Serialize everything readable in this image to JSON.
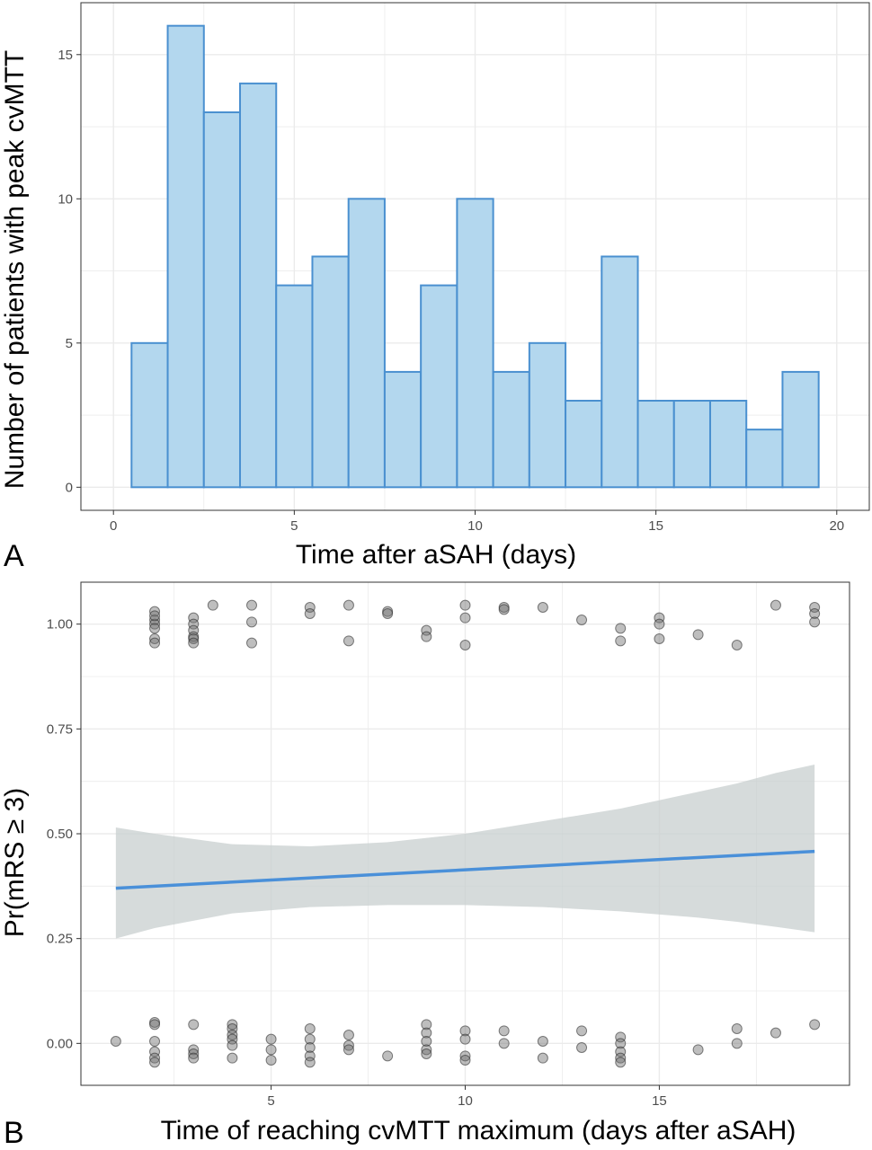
{
  "chart_data": [
    {
      "type": "bar",
      "panel_label": "A",
      "xlabel": "Time after aSAH (days)",
      "ylabel": "Number of patients with peak cvMTT",
      "x_ticks": [
        0,
        5,
        10,
        15,
        20
      ],
      "y_ticks": [
        0,
        5,
        10,
        15
      ],
      "xlim": [
        -0.9,
        20.9
      ],
      "ylim": [
        -0.8,
        16.8
      ],
      "bin_width": 1,
      "categories": [
        1,
        2,
        3,
        4,
        5,
        6,
        7,
        8,
        9,
        10,
        11,
        12,
        13,
        14,
        15,
        16,
        17,
        18,
        19
      ],
      "values": [
        5,
        16,
        13,
        14,
        7,
        8,
        10,
        4,
        7,
        10,
        4,
        5,
        3,
        8,
        3,
        3,
        3,
        2,
        4
      ],
      "grid": true,
      "colors": {
        "fill": "#b3d7ee",
        "edge": "#4a90d0",
        "grid": "#ebebeb"
      }
    },
    {
      "type": "scatter",
      "panel_label": "B",
      "xlabel": "Time of reaching cvMTT maximum (days after aSAH)",
      "ylabel": "Pr(mRS ≥ 3)",
      "x_ticks": [
        5,
        10,
        15
      ],
      "y_ticks": [
        "0.00",
        "0.25",
        "0.50",
        "0.75",
        "1.00"
      ],
      "xlim": [
        0.1,
        19.9
      ],
      "ylim": [
        -0.1,
        1.1
      ],
      "grid": true,
      "points_y1": [
        [
          2,
          1.03
        ],
        [
          2,
          1.01
        ],
        [
          2,
          1.0
        ],
        [
          2,
          0.99
        ],
        [
          2,
          0.965
        ],
        [
          2,
          0.955
        ],
        [
          2,
          1.02
        ],
        [
          3,
          1.015
        ],
        [
          3,
          1.0
        ],
        [
          3,
          0.985
        ],
        [
          3,
          0.97
        ],
        [
          3,
          0.965
        ],
        [
          3,
          0.955
        ],
        [
          3.5,
          1.045
        ],
        [
          4.5,
          1.045
        ],
        [
          4.5,
          1.005
        ],
        [
          4.5,
          0.955
        ],
        [
          6,
          1.04
        ],
        [
          6,
          1.025
        ],
        [
          7,
          1.045
        ],
        [
          7,
          0.96
        ],
        [
          8,
          1.03
        ],
        [
          8,
          1.025
        ],
        [
          9,
          0.985
        ],
        [
          9,
          0.97
        ],
        [
          10,
          1.045
        ],
        [
          10,
          1.015
        ],
        [
          10,
          0.95
        ],
        [
          11,
          1.04
        ],
        [
          11,
          1.035
        ],
        [
          12,
          1.04
        ],
        [
          13,
          1.01
        ],
        [
          14,
          0.99
        ],
        [
          14,
          0.96
        ],
        [
          15,
          1.015
        ],
        [
          15,
          1.0
        ],
        [
          15,
          0.965
        ],
        [
          16,
          0.975
        ],
        [
          17,
          0.95
        ],
        [
          18,
          1.045
        ],
        [
          19,
          1.04
        ],
        [
          19,
          1.025
        ],
        [
          19,
          1.005
        ]
      ],
      "points_y0": [
        [
          1,
          0.005
        ],
        [
          2,
          0.05
        ],
        [
          2,
          0.045
        ],
        [
          2,
          0.005
        ],
        [
          2,
          -0.02
        ],
        [
          2,
          -0.035
        ],
        [
          2,
          -0.045
        ],
        [
          3,
          0.045
        ],
        [
          3,
          -0.015
        ],
        [
          3,
          -0.025
        ],
        [
          3,
          -0.035
        ],
        [
          4,
          0.045
        ],
        [
          4,
          0.035
        ],
        [
          4,
          0.02
        ],
        [
          4,
          0.01
        ],
        [
          4,
          -0.005
        ],
        [
          4,
          -0.035
        ],
        [
          5,
          0.01
        ],
        [
          5,
          -0.015
        ],
        [
          5,
          -0.04
        ],
        [
          6,
          0.035
        ],
        [
          6,
          0.01
        ],
        [
          6,
          -0.01
        ],
        [
          6,
          -0.03
        ],
        [
          6,
          -0.045
        ],
        [
          7,
          0.02
        ],
        [
          7,
          -0.005
        ],
        [
          7,
          -0.015
        ],
        [
          8,
          -0.03
        ],
        [
          9,
          0.045
        ],
        [
          9,
          0.025
        ],
        [
          9,
          0.005
        ],
        [
          9,
          -0.015
        ],
        [
          9,
          -0.025
        ],
        [
          10,
          0.03
        ],
        [
          10,
          0.01
        ],
        [
          10,
          -0.03
        ],
        [
          10,
          -0.04
        ],
        [
          11,
          0.03
        ],
        [
          11,
          0.0
        ],
        [
          12,
          0.005
        ],
        [
          12,
          -0.035
        ],
        [
          13,
          0.03
        ],
        [
          13,
          -0.01
        ],
        [
          14,
          0.015
        ],
        [
          14,
          0.0
        ],
        [
          14,
          -0.02
        ],
        [
          14,
          -0.035
        ],
        [
          14,
          -0.045
        ],
        [
          16,
          -0.015
        ],
        [
          17,
          0.035
        ],
        [
          17,
          0.0
        ],
        [
          18,
          0.025
        ],
        [
          19,
          0.045
        ]
      ],
      "fit_line": {
        "x": [
          1,
          19
        ],
        "y": [
          0.37,
          0.458
        ]
      },
      "confidence_band": {
        "x": [
          1,
          2,
          4,
          6,
          8,
          10,
          12,
          14,
          16,
          17,
          18,
          19
        ],
        "lower": [
          0.25,
          0.275,
          0.31,
          0.325,
          0.33,
          0.33,
          0.325,
          0.315,
          0.3,
          0.29,
          0.278,
          0.265
        ],
        "upper": [
          0.515,
          0.5,
          0.475,
          0.47,
          0.48,
          0.5,
          0.53,
          0.56,
          0.6,
          0.62,
          0.645,
          0.665
        ]
      },
      "colors": {
        "point": "#6e6e6e",
        "line": "#4a90d9",
        "band": "#c8cfcf",
        "grid": "#ebebeb"
      }
    }
  ]
}
